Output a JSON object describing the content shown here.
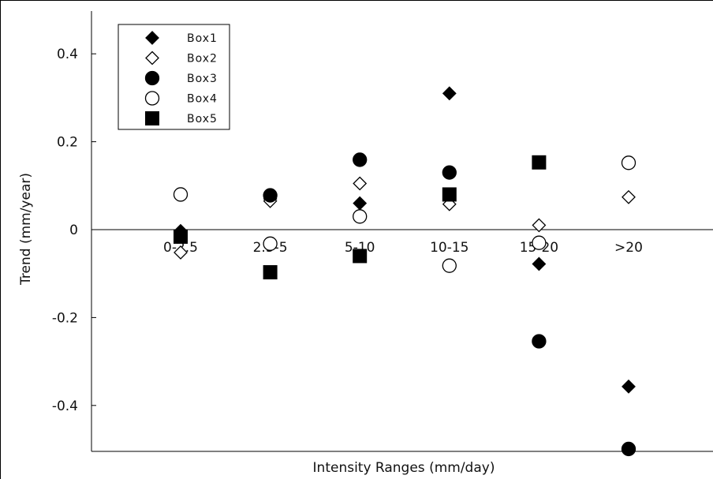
{
  "chart_data": {
    "type": "scatter",
    "title": "",
    "xlabel": "Intensity Ranges (mm/day)",
    "ylabel": "Trend (mm/year)",
    "categories": [
      "0-2.5",
      "2.5-5",
      "5-10",
      "10-15",
      "15-20",
      ">20"
    ],
    "ylim": [
      -0.5,
      0.5
    ],
    "yticks": [
      0.4,
      0.2,
      0,
      -0.2,
      -0.4
    ],
    "ytick_labels": [
      "0.4",
      "0.2",
      "0",
      "-0.2",
      "-0.4"
    ],
    "grid": false,
    "legend_position": "top-left",
    "series": [
      {
        "name": "Box1",
        "marker": "diamond-filled",
        "values": [
          -0.003,
          0.07,
          0.06,
          0.31,
          -0.078,
          -0.357
        ]
      },
      {
        "name": "Box2",
        "marker": "diamond-open",
        "values": [
          -0.052,
          0.065,
          0.105,
          0.058,
          0.01,
          0.074
        ]
      },
      {
        "name": "Box3",
        "marker": "circle-filled",
        "values": [
          null,
          0.078,
          0.159,
          0.13,
          -0.254,
          -0.499
        ]
      },
      {
        "name": "Box4",
        "marker": "circle-open",
        "values": [
          0.08,
          -0.032,
          0.03,
          -0.082,
          -0.03,
          0.152
        ]
      },
      {
        "name": "Box5",
        "marker": "square-filled",
        "values": [
          -0.016,
          -0.097,
          -0.06,
          0.08,
          0.153,
          null
        ]
      }
    ]
  }
}
